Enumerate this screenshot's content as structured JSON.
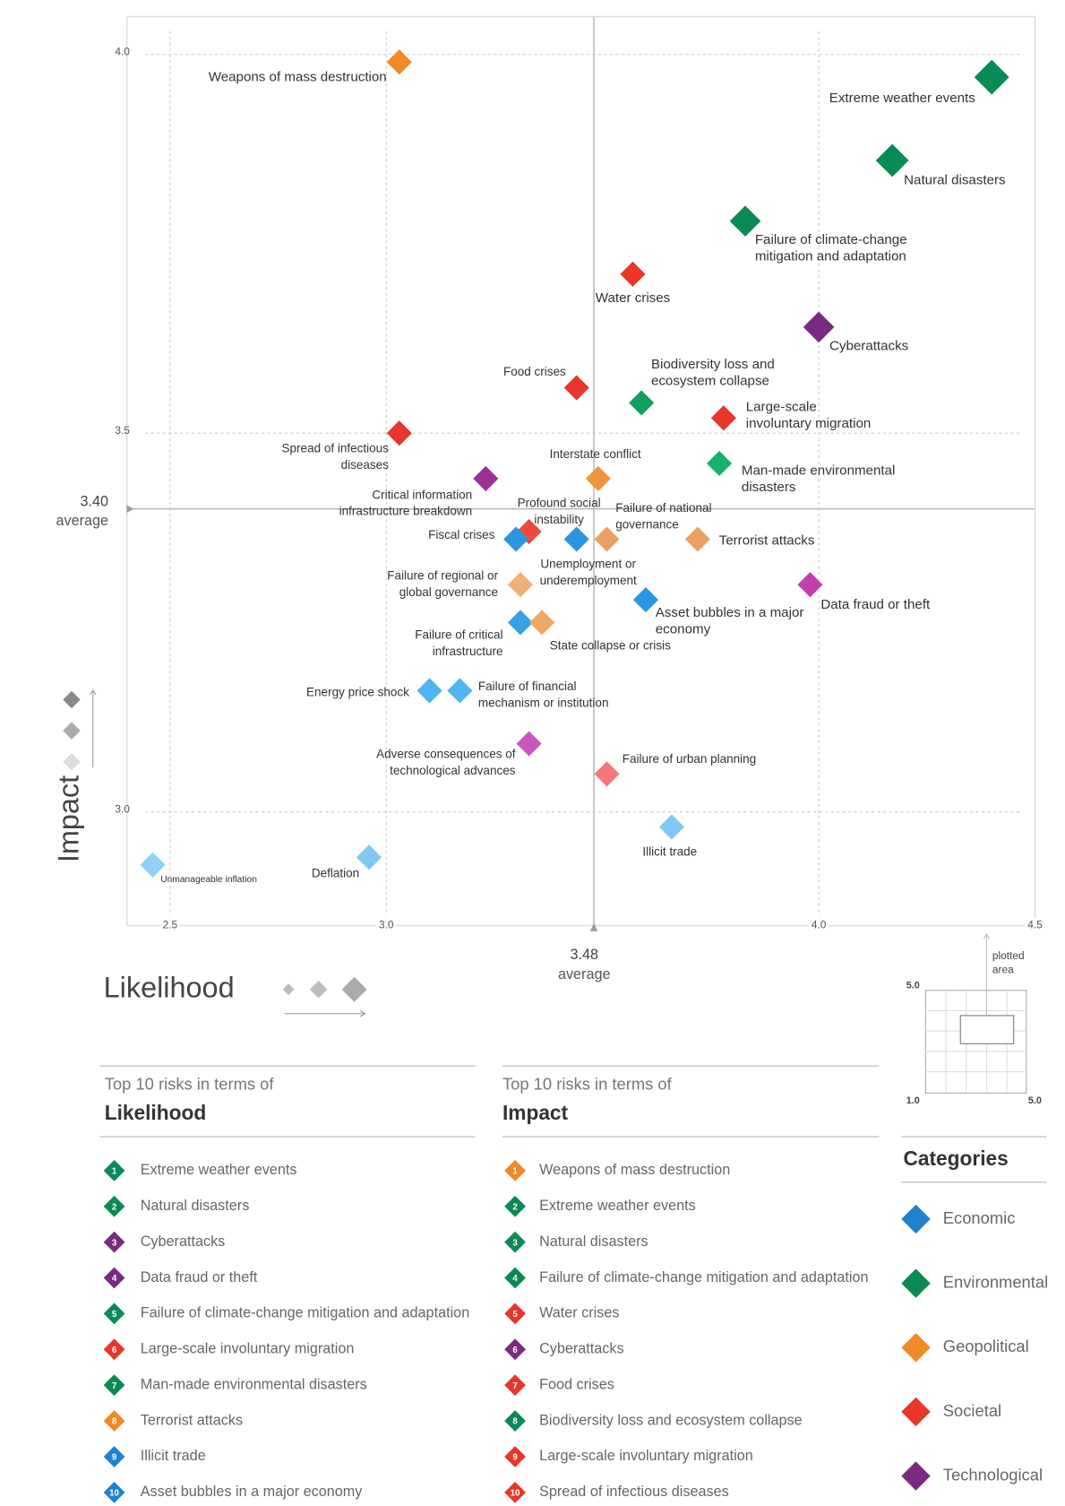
{
  "chart_data": {
    "type": "scatter",
    "x_label": "Likelihood",
    "y_label": "Impact",
    "xlim": [
      2.4,
      4.5
    ],
    "ylim": [
      2.85,
      4.05
    ],
    "xticks": [
      2.5,
      {
        "value": 3,
        "label": "3.0"
      },
      {
        "value": 4,
        "label": "4.0"
      },
      4.5
    ],
    "yticks": [
      {
        "value": 3,
        "label": "3.0"
      },
      3.5,
      {
        "value": 4,
        "label": "4.0"
      }
    ],
    "grid": true,
    "averages": {
      "x": {
        "value": 3.48,
        "label": "3.48"
      },
      "y": {
        "value": 3.4,
        "label": "3.40"
      },
      "label": "average"
    },
    "points": [
      {
        "label": [
          "Weapons of mass destruction"
        ],
        "x": 3.03,
        "y": 3.99,
        "color": "#f08a24"
      },
      {
        "label": [
          "Extreme weather events"
        ],
        "x": 4.4,
        "y": 3.97,
        "color": "#0a8a55"
      },
      {
        "label": [
          "Natural disasters"
        ],
        "x": 4.17,
        "y": 3.86,
        "color": "#0a8a55"
      },
      {
        "label": [
          "Failure of climate-change",
          "mitigation and adaptation"
        ],
        "x": 3.83,
        "y": 3.78,
        "color": "#0a8a55"
      },
      {
        "label": [
          "Water crises"
        ],
        "x": 3.57,
        "y": 3.71,
        "color": "#e8362a"
      },
      {
        "label": [
          "Cyberattacks"
        ],
        "x": 4.0,
        "y": 3.64,
        "color": "#7a2a80"
      },
      {
        "label": [
          "Food crises"
        ],
        "x": 3.44,
        "y": 3.56,
        "color": "#e8362a"
      },
      {
        "label": [
          "Biodiversity loss and",
          "ecosystem collapse"
        ],
        "x": 3.59,
        "y": 3.54,
        "color": "#10a060"
      },
      {
        "label": [
          "Large-scale",
          "involuntary migration"
        ],
        "x": 3.78,
        "y": 3.52,
        "color": "#e8362a"
      },
      {
        "label": [
          "Spread of infectious",
          "diseases"
        ],
        "x": 3.03,
        "y": 3.5,
        "color": "#e8362a"
      },
      {
        "label": [
          "Man-made environmental",
          "disasters"
        ],
        "x": 3.77,
        "y": 3.46,
        "color": "#18b070"
      },
      {
        "label": [
          "Interstate conflict"
        ],
        "x": 3.49,
        "y": 3.44,
        "color": "#f0963a"
      },
      {
        "label": [
          "Critical information",
          "infrastructure breakdown"
        ],
        "x": 3.23,
        "y": 3.44,
        "color": "#9a3098"
      },
      {
        "label": [
          "Profound social",
          "instability"
        ],
        "x": 3.33,
        "y": 3.37,
        "color": "#ee4a40"
      },
      {
        "label": [
          "Fiscal crises"
        ],
        "x": 3.3,
        "y": 3.36,
        "color": "#2a96e0"
      },
      {
        "label": [
          "Unemployment or",
          "underemployment"
        ],
        "x": 3.44,
        "y": 3.36,
        "color": "#2a96e0"
      },
      {
        "label": [
          "Failure of national",
          "governance"
        ],
        "x": 3.51,
        "y": 3.36,
        "color": "#eca060"
      },
      {
        "label": [
          "Terrorist attacks"
        ],
        "x": 3.72,
        "y": 3.36,
        "color": "#eca060"
      },
      {
        "label": [
          "Failure of regional or",
          "global governance"
        ],
        "x": 3.31,
        "y": 3.3,
        "color": "#f0b078"
      },
      {
        "label": [
          "Asset bubbles in a major",
          "economy"
        ],
        "x": 3.6,
        "y": 3.28,
        "color": "#2a96e0"
      },
      {
        "label": [
          "Data fraud or theft"
        ],
        "x": 3.98,
        "y": 3.3,
        "color": "#c040b0"
      },
      {
        "label": [
          "Failure of critical",
          "infrastructure"
        ],
        "x": 3.31,
        "y": 3.25,
        "color": "#3aa0e4"
      },
      {
        "label": [
          "State collapse or crisis"
        ],
        "x": 3.36,
        "y": 3.25,
        "color": "#f0a868"
      },
      {
        "label": [
          "Energy price shock"
        ],
        "x": 3.1,
        "y": 3.16,
        "color": "#50b4f0"
      },
      {
        "label": [
          "Failure of financial",
          "mechanism or institution"
        ],
        "x": 3.17,
        "y": 3.16,
        "color": "#50b4f0"
      },
      {
        "label": [
          "Adverse consequences of",
          "technological advances"
        ],
        "x": 3.33,
        "y": 3.09,
        "color": "#c858c0"
      },
      {
        "label": [
          "Failure of urban planning"
        ],
        "x": 3.51,
        "y": 3.05,
        "color": "#f47878"
      },
      {
        "label": [
          "Illicit trade"
        ],
        "x": 3.66,
        "y": 2.98,
        "color": "#80c8f4"
      },
      {
        "label": [
          "Deflation"
        ],
        "x": 2.96,
        "y": 2.94,
        "color": "#80c8f4"
      },
      {
        "label": [
          "Unmanageable inflation"
        ],
        "x": 2.46,
        "y": 2.93,
        "color": "#90d0f8"
      }
    ]
  },
  "inset": {
    "note": [
      "plotted",
      "area"
    ],
    "top": "5.0",
    "bottom_left": "1.0",
    "bottom_right": "5.0"
  },
  "likelihood_top10": {
    "heading": "Top 10 risks in terms of",
    "title": "Likelihood",
    "items": [
      {
        "rank": 1,
        "name": "Extreme weather events",
        "color": "#0a8a55"
      },
      {
        "rank": 2,
        "name": "Natural disasters",
        "color": "#0a8a55"
      },
      {
        "rank": 3,
        "name": "Cyberattacks",
        "color": "#7a2a80"
      },
      {
        "rank": 4,
        "name": "Data fraud or theft",
        "color": "#7a2a80"
      },
      {
        "rank": 5,
        "name": "Failure of climate-change mitigation and adaptation",
        "color": "#0a8a55"
      },
      {
        "rank": 6,
        "name": "Large-scale involuntary migration",
        "color": "#e8362a"
      },
      {
        "rank": 7,
        "name": "Man-made environmental disasters",
        "color": "#0a8a55"
      },
      {
        "rank": 8,
        "name": "Terrorist attacks",
        "color": "#f08a24"
      },
      {
        "rank": 9,
        "name": "Illicit trade",
        "color": "#1e82d0"
      },
      {
        "rank": 10,
        "name": "Asset bubbles in a major economy",
        "color": "#1e82d0"
      }
    ]
  },
  "impact_top10": {
    "heading": "Top 10 risks in terms of",
    "title": "Impact",
    "items": [
      {
        "rank": 1,
        "name": "Weapons of mass destruction",
        "color": "#f08a24"
      },
      {
        "rank": 2,
        "name": "Extreme weather events",
        "color": "#0a8a55"
      },
      {
        "rank": 3,
        "name": "Natural disasters",
        "color": "#0a8a55"
      },
      {
        "rank": 4,
        "name": "Failure of climate-change mitigation and adaptation",
        "color": "#0a8a55"
      },
      {
        "rank": 5,
        "name": "Water crises",
        "color": "#e8362a"
      },
      {
        "rank": 6,
        "name": "Cyberattacks",
        "color": "#7a2a80"
      },
      {
        "rank": 7,
        "name": "Food crises",
        "color": "#e8362a"
      },
      {
        "rank": 8,
        "name": "Biodiversity loss and ecosystem collapse",
        "color": "#0a8a55"
      },
      {
        "rank": 9,
        "name": "Large-scale involuntary migration",
        "color": "#e8362a"
      },
      {
        "rank": 10,
        "name": "Spread of infectious diseases",
        "color": "#e8362a"
      }
    ]
  },
  "categories": {
    "title": "Categories",
    "items": [
      {
        "name": "Economic",
        "color": "#1e82d0"
      },
      {
        "name": "Environmental",
        "color": "#0a8a55"
      },
      {
        "name": "Geopolitical",
        "color": "#f08a24"
      },
      {
        "name": "Societal",
        "color": "#e8362a"
      },
      {
        "name": "Technological",
        "color": "#7a2a80"
      }
    ]
  }
}
